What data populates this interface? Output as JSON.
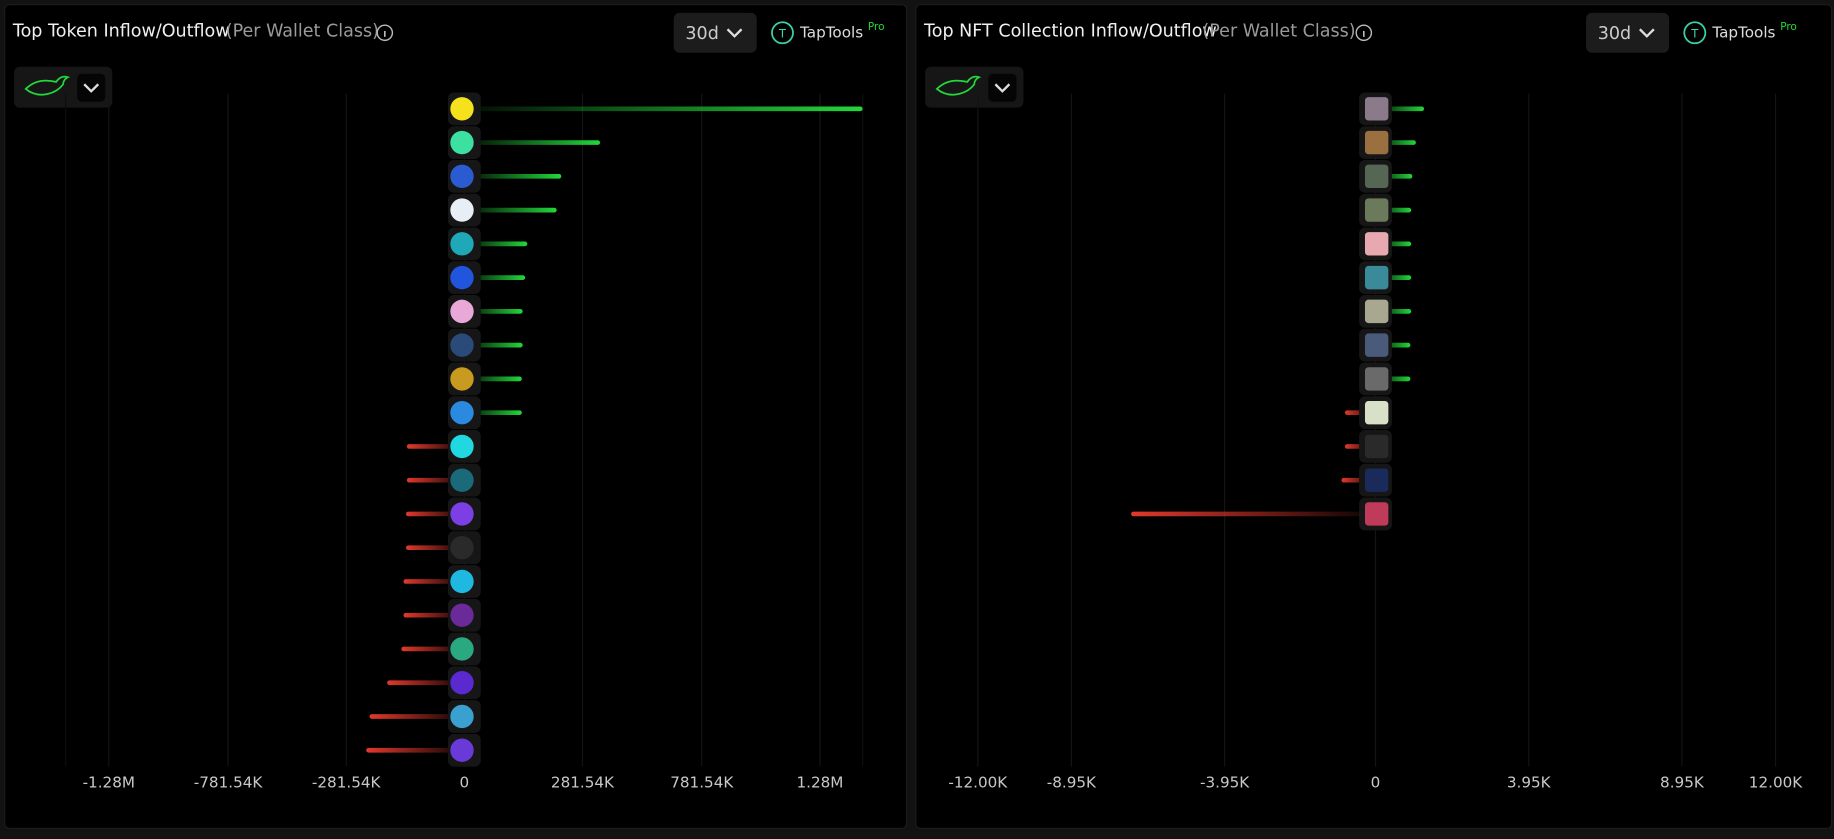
{
  "brand": {
    "name": "TapTools",
    "tier": "Pro"
  },
  "chart_data": [
    {
      "type": "bar",
      "title": "Top Token Inflow/Outflow",
      "subtitle": "(Per Wallet Class)",
      "period": "30d",
      "color": "#22d83a",
      "negative_color": "#e2392c",
      "values": [
        1460000,
        355000,
        231000,
        220000,
        150000,
        145000,
        139000,
        139000,
        137000,
        137000,
        -137000,
        -137000,
        -139000,
        -139000,
        -145000,
        -145000,
        -150000,
        -184000,
        -226000,
        -234000
      ],
      "xlim": [
        -1460000,
        1460000
      ],
      "xticks": [
        {
          "value": -1280000,
          "label": "-1.28M"
        },
        {
          "value": -781540,
          "label": "-781.54K"
        },
        {
          "value": -281540,
          "label": "-281.54K"
        },
        0,
        {
          "value": 281540,
          "label": "281.54K"
        },
        {
          "value": 781540,
          "label": "781.54K"
        },
        {
          "value": 1280000,
          "label": "1.28M"
        }
      ],
      "grid": true
    },
    {
      "type": "bar",
      "title": "Top NFT Collection Inflow/Outflow",
      "subtitle": "(Per Wallet Class)",
      "period": "30d",
      "color": "#22d83a",
      "negative_color": "#e2392c",
      "values": [
        1250,
        1040,
        950,
        920,
        920,
        920,
        920,
        900,
        900,
        -800,
        -800,
        -890,
        -7000
      ],
      "xlim": [
        -12000,
        12000
      ],
      "xticks": [
        {
          "value": -12000,
          "label": "-12.00K"
        },
        {
          "value": -8950,
          "label": "-8.95K"
        },
        {
          "value": -3950,
          "label": "-3.95K"
        },
        0,
        {
          "value": 3950,
          "label": "3.95K"
        },
        {
          "value": 8950,
          "label": "8.95K"
        },
        {
          "value": 12000,
          "label": "12.00K"
        }
      ],
      "grid": true
    }
  ]
}
